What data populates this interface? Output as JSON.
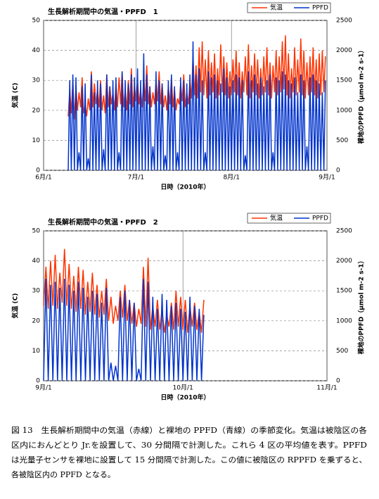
{
  "chart_data": [
    {
      "type": "line",
      "title": "生長解析期間中の気温・PPFD　1",
      "xlabel": "日時（2010年）",
      "ylabel": "気温 (C)",
      "y2label": "裸地のPPFD（μmol m-2 s-1）",
      "xlim": [
        0,
        92
      ],
      "xticks": [
        {
          "value": 0,
          "label": "6月/1"
        },
        {
          "value": 30,
          "label": "7月/1"
        },
        {
          "value": 61,
          "label": "8月/1"
        },
        {
          "value": 92,
          "label": "9月/1"
        }
      ],
      "ylim": [
        0,
        50
      ],
      "yticks": [
        0,
        10,
        20,
        30,
        40,
        50
      ],
      "y2lim": [
        0,
        2500
      ],
      "y2ticks": [
        0,
        500,
        1000,
        1500,
        2000,
        2500
      ],
      "grid": true,
      "x": [
        8,
        8.5,
        9,
        9.5,
        10,
        10.5,
        11,
        11.5,
        12,
        12.5,
        13,
        13.5,
        14,
        14.5,
        15,
        15.5,
        16,
        16.5,
        17,
        17.5,
        18,
        18.5,
        19,
        19.5,
        20,
        20.5,
        21,
        21.5,
        22,
        22.5,
        23,
        23.5,
        24,
        24.5,
        25,
        25.5,
        26,
        26.5,
        27,
        27.5,
        28,
        28.5,
        29,
        29.5,
        30,
        30.5,
        31,
        31.5,
        32,
        32.5,
        33,
        33.5,
        34,
        34.5,
        35,
        35.5,
        36,
        36.5,
        37,
        37.5,
        38,
        38.5,
        39,
        39.5,
        40,
        40.5,
        41,
        41.5,
        42,
        42.5,
        43,
        43.5,
        44,
        44.5,
        45,
        45.5,
        46,
        46.5,
        47,
        47.5,
        48,
        48.5,
        49,
        49.5,
        50,
        50.5,
        51,
        51.5,
        52,
        52.5,
        53,
        53.5,
        54,
        54.5,
        55,
        55.5,
        56,
        56.5,
        57,
        57.5,
        58,
        58.5,
        59,
        59.5,
        60,
        60.5,
        61,
        61.5,
        62,
        62.5,
        63,
        63.5,
        64,
        64.5,
        65,
        65.5,
        66,
        66.5,
        67,
        67.5,
        68,
        68.5,
        69,
        69.5,
        70,
        70.5,
        71,
        71.5,
        72,
        72.5,
        73,
        73.5,
        74,
        74.5,
        75,
        75.5,
        76,
        76.5,
        77,
        77.5,
        78,
        78.5,
        79,
        79.5,
        80,
        80.5,
        81,
        81.5,
        82,
        82.5,
        83,
        83.5,
        84,
        84.5,
        85,
        85.5,
        86,
        86.5,
        87,
        87.5,
        88,
        88.5,
        89,
        89.5,
        90,
        90.5,
        91,
        91.5
      ],
      "series": [
        {
          "name": "気温",
          "color": "#ff3300",
          "values": [
            18,
            27,
            19,
            30,
            17,
            28,
            20,
            26,
            21,
            31,
            19,
            22,
            18,
            24,
            20,
            33,
            21,
            29,
            22,
            27,
            21,
            30,
            20,
            25,
            19,
            32,
            21,
            28,
            22,
            26,
            20,
            29,
            21,
            31,
            22,
            33,
            21,
            27,
            20,
            30,
            22,
            34,
            21,
            28,
            23,
            30,
            22,
            27,
            21,
            31,
            23,
            35,
            22,
            28,
            21,
            26,
            22,
            30,
            23,
            33,
            22,
            29,
            21,
            25,
            20,
            28,
            22,
            31,
            21,
            27,
            20,
            24,
            22,
            29,
            23,
            32,
            21,
            26,
            22,
            30,
            24,
            38,
            25,
            35,
            24,
            41,
            26,
            43,
            25,
            37,
            24,
            40,
            25,
            36,
            26,
            39,
            24,
            34,
            25,
            42,
            26,
            38,
            25,
            36,
            24,
            33,
            25,
            37,
            26,
            40,
            25,
            36,
            24,
            33,
            26,
            38,
            25,
            42,
            24,
            35,
            26,
            39,
            25,
            37,
            24,
            34,
            25,
            38,
            26,
            41,
            25,
            36,
            24,
            35,
            26,
            40,
            25,
            38,
            26,
            43,
            27,
            45,
            25,
            39,
            24,
            34,
            26,
            41,
            25,
            37,
            26,
            44,
            25,
            40,
            24,
            36,
            25,
            38,
            26,
            41,
            25,
            37,
            24,
            39,
            25,
            40,
            26,
            38
          ]
        },
        {
          "name": "PPFD",
          "color": "#0033cc",
          "axis": "y2",
          "values": [
            0,
            1500,
            0,
            1600,
            0,
            1550,
            0,
            300,
            0,
            1400,
            0,
            1450,
            0,
            200,
            0,
            1600,
            0,
            1300,
            0,
            1500,
            0,
            1450,
            0,
            350,
            0,
            1600,
            0,
            1400,
            0,
            1500,
            0,
            1550,
            0,
            300,
            0,
            1650,
            0,
            1500,
            0,
            1450,
            0,
            1600,
            0,
            1550,
            0,
            1700,
            0,
            1500,
            0,
            1950,
            0,
            1600,
            0,
            1400,
            0,
            400,
            0,
            1650,
            0,
            1500,
            0,
            1450,
            0,
            250,
            0,
            1500,
            0,
            1600,
            0,
            1400,
            0,
            300,
            0,
            1550,
            0,
            1500,
            0,
            1450,
            0,
            1600,
            0,
            2150,
            0,
            1600,
            0,
            1700,
            0,
            1500,
            0,
            300,
            0,
            1650,
            0,
            1550,
            0,
            1600,
            0,
            1500,
            0,
            1450,
            0,
            1700,
            0,
            1550,
            0,
            1400,
            0,
            1500,
            0,
            1600,
            0,
            1550,
            0,
            1500,
            0,
            250,
            0,
            1650,
            0,
            1500,
            0,
            1600,
            0,
            1450,
            0,
            1550,
            0,
            1400,
            0,
            1500,
            0,
            1600,
            0,
            300,
            0,
            1550,
            0,
            1500,
            0,
            1650,
            0,
            1600,
            0,
            1500,
            0,
            1450,
            0,
            1550,
            0,
            1300,
            0,
            1600,
            0,
            1500,
            0,
            400,
            0,
            1550,
            0,
            1600,
            0,
            1500,
            0,
            1450,
            0,
            1300,
            0,
            1500
          ]
        }
      ]
    },
    {
      "type": "line",
      "title": "生長解析期間中の気温・PPFD　2",
      "xlabel": "日時（2010年）",
      "ylabel": "気温 (C)",
      "y2label": "裸地のPPFD（μmol m-2 s-1）",
      "xlim": [
        0,
        61
      ],
      "xticks": [
        {
          "value": 0,
          "label": "9月/1"
        },
        {
          "value": 30,
          "label": "10月/1"
        },
        {
          "value": 61,
          "label": "11月/1"
        }
      ],
      "ylim": [
        0,
        50
      ],
      "yticks": [
        0,
        10,
        20,
        30,
        40,
        50
      ],
      "y2lim": [
        0,
        2500
      ],
      "y2ticks": [
        0,
        500,
        1000,
        1500,
        2000,
        2500
      ],
      "grid": true,
      "x": [
        0,
        0.5,
        1,
        1.5,
        2,
        2.5,
        3,
        3.5,
        4,
        4.5,
        5,
        5.5,
        6,
        6.5,
        7,
        7.5,
        8,
        8.5,
        9,
        9.5,
        10,
        10.5,
        11,
        11.5,
        12,
        12.5,
        13,
        13.5,
        14,
        14.5,
        15,
        15.5,
        16,
        16.5,
        17,
        17.5,
        18,
        18.5,
        19,
        19.5,
        20,
        20.5,
        21,
        21.5,
        22,
        22.5,
        23,
        23.5,
        24,
        24.5,
        25,
        25.5,
        26,
        26.5,
        27,
        27.5,
        28,
        28.5,
        29,
        29.5,
        30,
        30.5,
        31,
        31.5,
        32,
        32.5,
        33,
        33.5,
        34,
        34.5
      ],
      "series": [
        {
          "name": "気温",
          "color": "#ff3300",
          "values": [
            25,
            38,
            24,
            40,
            25,
            42,
            24,
            36,
            26,
            44,
            25,
            39,
            24,
            35,
            23,
            38,
            24,
            37,
            22,
            33,
            23,
            36,
            22,
            32,
            21,
            30,
            22,
            34,
            20,
            28,
            19,
            25,
            20,
            30,
            21,
            32,
            20,
            27,
            19,
            26,
            18,
            24,
            19,
            38,
            18,
            41,
            17,
            25,
            18,
            27,
            17,
            24,
            16,
            22,
            18,
            26,
            17,
            30,
            18,
            28,
            17,
            27,
            16,
            25,
            18,
            26,
            17,
            23,
            16,
            27
          ]
        },
        {
          "name": "PPFD",
          "color": "#0033cc",
          "axis": "y2",
          "values": [
            0,
            1700,
            0,
            1600,
            0,
            1650,
            0,
            1550,
            0,
            1700,
            0,
            1600,
            0,
            1500,
            0,
            1650,
            0,
            1550,
            0,
            1400,
            0,
            1500,
            0,
            1450,
            0,
            1300,
            0,
            1550,
            0,
            300,
            0,
            250,
            0,
            1400,
            0,
            1500,
            0,
            1350,
            0,
            1300,
            0,
            200,
            0,
            1700,
            0,
            1650,
            0,
            1400,
            0,
            1200,
            0,
            1450,
            0,
            1350,
            0,
            1250,
            0,
            1300,
            0,
            1200,
            0,
            1150,
            0,
            1400,
            0,
            1250,
            0,
            1200,
            0,
            1100
          ]
        }
      ]
    }
  ],
  "caption": {
    "lines": [
      "図 13　生長解析期間中の気温（赤線）と裸地の PPFD（青線）の季節変化。気温は被陰区の各",
      "区内におんどとり Jr.を設置して、30 分間隔で計測した。これら 4 区の平均値を表す。PPFD",
      "は光量子センサを裸地に設置して 15 分間隔で計測した。この値に被陰区の RPPFD を乗ずると、",
      "各被陰区内の PPFD となる。"
    ]
  }
}
